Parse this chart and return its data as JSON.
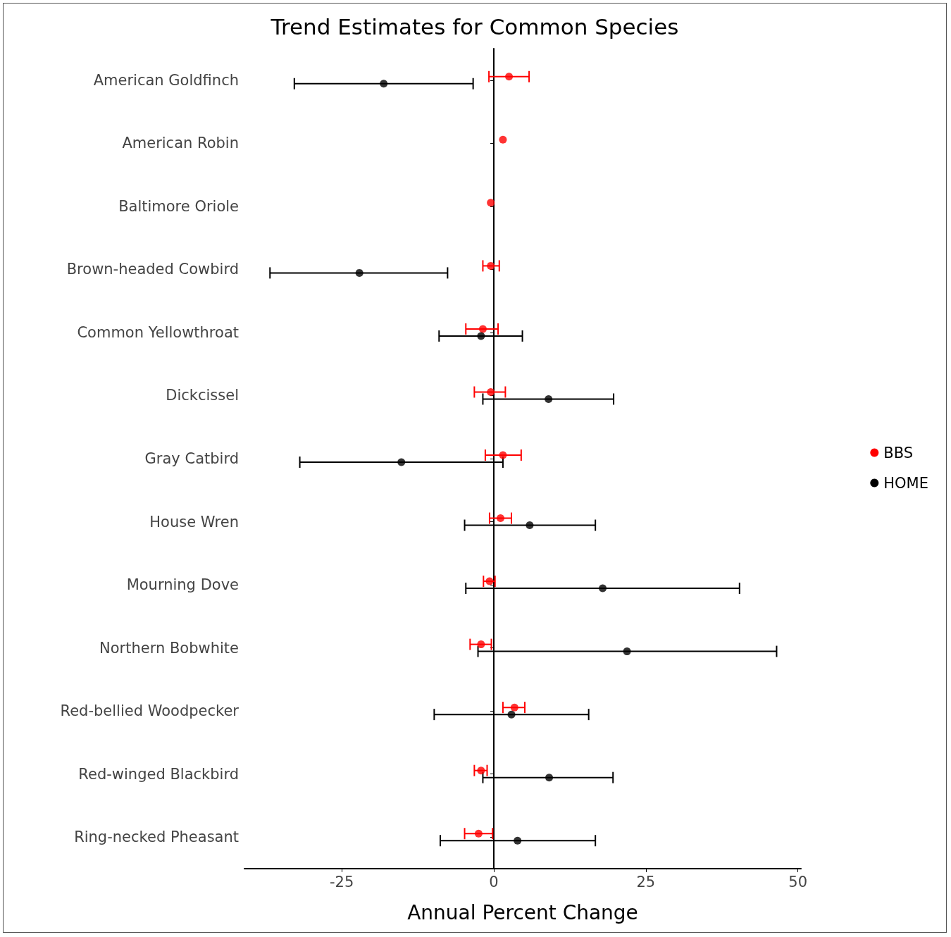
{
  "chart_data": {
    "type": "scatter",
    "title": "Trend Estimates for Common Species",
    "xlabel": "Annual Percent Change",
    "orientation": "horizontal",
    "categories": [
      "American Goldfinch",
      "American Robin",
      "Baltimore Oriole",
      "Brown-headed Cowbird",
      "Common Yellowthroat",
      "Dickcissel",
      "Gray Catbird",
      "House Wren",
      "Mourning Dove",
      "Northern Bobwhite",
      "Red-bellied Woodpecker",
      "Red-winged Blackbird",
      "Ring-necked Pheasant"
    ],
    "series": [
      {
        "name": "BBS",
        "color": "#ff0000",
        "values": [
          2.5,
          1.5,
          -0.5,
          -0.5,
          -1.8,
          -0.5,
          1.5,
          1.1,
          -0.7,
          -2.1,
          3.4,
          -2.1,
          -2.5
        ],
        "errors": [
          [
            -0.8,
            5.8
          ],
          null,
          null,
          [
            -1.8,
            0.9
          ],
          [
            -4.6,
            0.7
          ],
          [
            -3.2,
            1.9
          ],
          [
            -1.4,
            4.5
          ],
          [
            -0.7,
            2.9
          ],
          [
            -1.7,
            0.2
          ],
          [
            -3.9,
            -0.4
          ],
          [
            1.5,
            5.1
          ],
          [
            -3.2,
            -1.1
          ],
          [
            -4.8,
            -0.2
          ]
        ]
      },
      {
        "name": "HOME",
        "color": "#000000",
        "values": [
          -18.1,
          null,
          null,
          -22.1,
          -2.1,
          9.0,
          -15.2,
          5.9,
          17.9,
          21.9,
          2.9,
          9.1,
          3.9
        ],
        "errors": [
          [
            -32.8,
            -3.4
          ],
          null,
          null,
          [
            -36.8,
            -7.6
          ],
          [
            -9.0,
            4.7
          ],
          [
            -1.8,
            19.7
          ],
          [
            -31.9,
            1.5
          ],
          [
            -4.8,
            16.7
          ],
          [
            -4.6,
            40.4
          ],
          [
            -2.6,
            46.5
          ],
          [
            -9.8,
            15.6
          ],
          [
            -1.8,
            19.6
          ],
          [
            -8.8,
            16.7
          ]
        ]
      }
    ],
    "xlim": [
      -41,
      50.5
    ],
    "xticks": [
      -25,
      0,
      25,
      50
    ],
    "ref_lines": [
      {
        "axis": "x",
        "value": 0,
        "color": "#000000"
      }
    ],
    "marker": "circle",
    "legend": "right",
    "grid": false
  }
}
